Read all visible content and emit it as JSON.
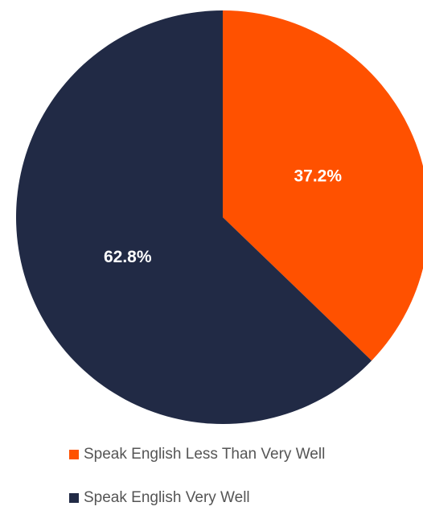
{
  "chart_data": {
    "type": "pie",
    "title": "",
    "slices": [
      {
        "name": "Speak English Less Than Very Well",
        "value": 37.2,
        "label": "37.2%",
        "color": "#ff5100"
      },
      {
        "name": "Speak English Very Well",
        "value": 62.8,
        "label": "62.8%",
        "color": "#212a45"
      }
    ],
    "start_angle": "12 o'clock",
    "direction": "clockwise",
    "legend_position": "bottom",
    "data_label_color": "#ffffff"
  }
}
